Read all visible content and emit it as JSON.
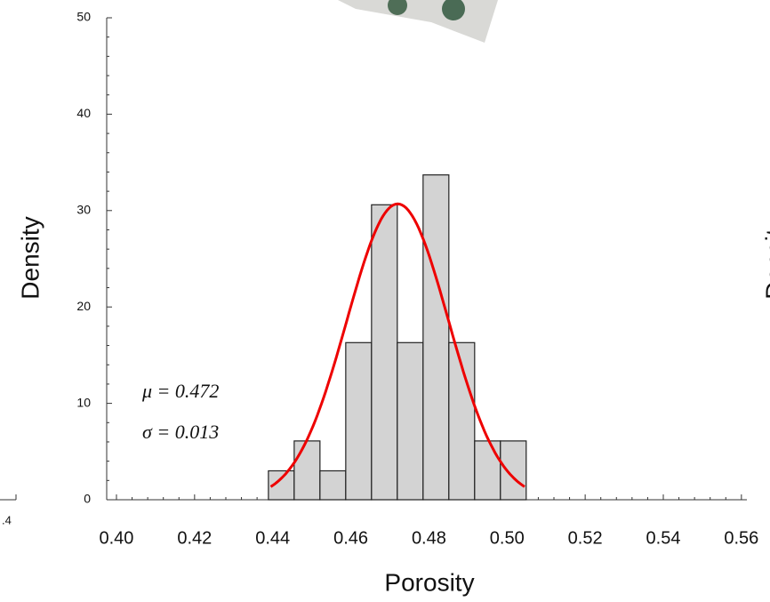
{
  "chart_data": {
    "type": "histogram",
    "x_label": "Porosity",
    "y_label": "Density",
    "bins": [
      0.4389,
      0.4455,
      0.4521,
      0.4587,
      0.4653,
      0.4719,
      0.4785,
      0.4851,
      0.4917,
      0.4983,
      0.5049
    ],
    "values": [
      3.0,
      6.1,
      3.0,
      16.3,
      30.6,
      16.3,
      33.7,
      16.3,
      6.1,
      6.1
    ],
    "color": "#d3d3d3",
    "fit": {
      "mu": 0.472,
      "sigma": 0.013,
      "mu_label": "μ = 0.472",
      "sigma_label": "σ = 0.013",
      "color": "#ee0000"
    },
    "xlim": [
      0.3975,
      0.5614
    ],
    "xticks": [
      {
        "value": 0.4,
        "label": "0.40"
      },
      {
        "value": 0.42,
        "label": "0.42"
      },
      {
        "value": 0.44,
        "label": "0.44"
      },
      {
        "value": 0.46,
        "label": "0.46"
      },
      {
        "value": 0.48,
        "label": "0.48"
      },
      {
        "value": 0.5,
        "label": "0.50"
      },
      {
        "value": 0.52,
        "label": "0.52"
      },
      {
        "value": 0.54,
        "label": "0.54"
      },
      {
        "value": 0.56,
        "label": "0.56"
      }
    ],
    "ylim": [
      0,
      50
    ],
    "yticks": [
      0,
      10,
      20,
      30,
      40,
      50
    ],
    "left_fragment_label": ".4",
    "right_fragment_label": "Density"
  }
}
